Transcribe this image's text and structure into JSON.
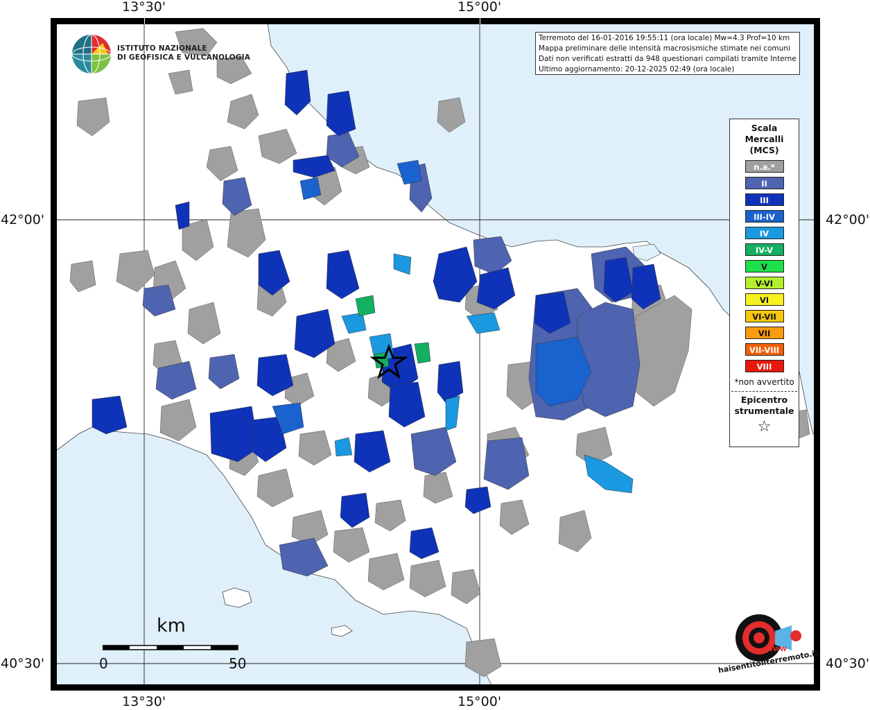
{
  "coordinates": {
    "top_left": "13°30'",
    "top_right": "15°00'",
    "bottom_left": "13°30'",
    "bottom_right": "15°00'",
    "left_mid": "42°00'",
    "right_mid": "42°00'",
    "left_bottom": "40°30'",
    "right_bottom": "40°30'"
  },
  "organization": {
    "line1": "ISTITUTO NAZIONALE",
    "line2": "DI GEOFISICA E VULCANOLOGIA"
  },
  "info": {
    "line1": "Terremoto del 16-01-2016 19:55:11 (ora locale) Mw=4.3 Prof=10 km",
    "line2": "Mappa preliminare delle intensità macrosismiche stimate nei comuni",
    "line3": "Dati non verificati estratti da 948 questionari compilati tramite Internet.",
    "line4": "Ultimo aggiornamento: 20-12-2025 02:49 (ora locale)"
  },
  "legend": {
    "title": "Scala\nMercalli\n(MCS)",
    "items": [
      {
        "label": "n.a.*",
        "color": "#a0a0a0",
        "text_color": "#ffffff"
      },
      {
        "label": "II",
        "color": "#4f64b0",
        "text_color": "#ffffff"
      },
      {
        "label": "III",
        "color": "#0f33b8",
        "text_color": "#ffffff"
      },
      {
        "label": "III-IV",
        "color": "#1a63cf",
        "text_color": "#ffffff"
      },
      {
        "label": "IV",
        "color": "#1a98e0",
        "text_color": "#ffffff"
      },
      {
        "label": "IV-V",
        "color": "#12b060",
        "text_color": "#ffffff"
      },
      {
        "label": "V",
        "color": "#1de04a",
        "text_color": "#111111"
      },
      {
        "label": "V-VI",
        "color": "#b4ef2e",
        "text_color": "#111111"
      },
      {
        "label": "VI",
        "color": "#f7f21f",
        "text_color": "#111111"
      },
      {
        "label": "VI-VII",
        "color": "#f5c70f",
        "text_color": "#111111"
      },
      {
        "label": "VII",
        "color": "#f79b0f",
        "text_color": "#111111"
      },
      {
        "label": "VII-VIII",
        "color": "#f2600a",
        "text_color": "#ffffff"
      },
      {
        "label": "VIII",
        "color": "#e8180c",
        "text_color": "#ffffff"
      }
    ],
    "note": "*non avvertito",
    "epicenter_label": "Epicentro\nstrumentale",
    "epicenter_symbol": "☆"
  },
  "scale_bar": {
    "unit": "km",
    "start": "0",
    "end": "50"
  },
  "watermark": {
    "text": "haisentitoilterremoto.it",
    "url": "WWW"
  },
  "colors": {
    "sea": "#dff0fb",
    "land": "#ffffff",
    "na": "#a0a0a0",
    "frame": "#000000"
  }
}
